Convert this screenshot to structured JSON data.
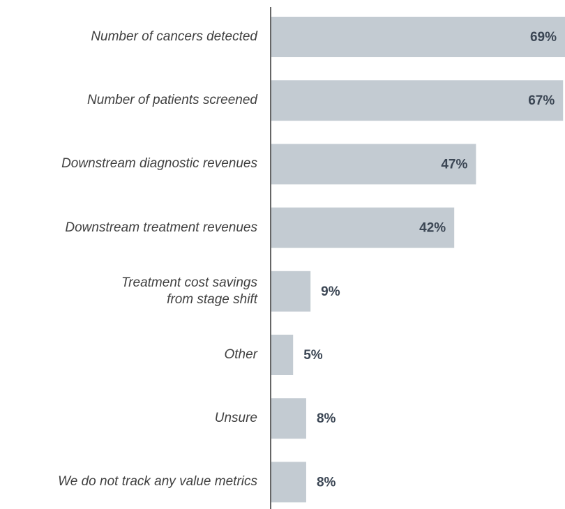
{
  "chart_data": {
    "type": "bar",
    "orientation": "horizontal",
    "categories": [
      "Number of cancers detected",
      "Number of patients screened",
      "Downstream diagnostic revenues",
      "Downstream treatment revenues",
      "Treatment cost savings\nfrom stage shift",
      "Other",
      "Unsure",
      "We do not track any value metrics"
    ],
    "values": [
      69,
      67,
      47,
      42,
      9,
      5,
      8,
      8
    ],
    "value_labels": [
      "69%",
      "67%",
      "47%",
      "42%",
      "9%",
      "5%",
      "8%",
      "8%"
    ],
    "color": "#c3cbd2",
    "xlim": [
      0,
      67.6
    ]
  }
}
